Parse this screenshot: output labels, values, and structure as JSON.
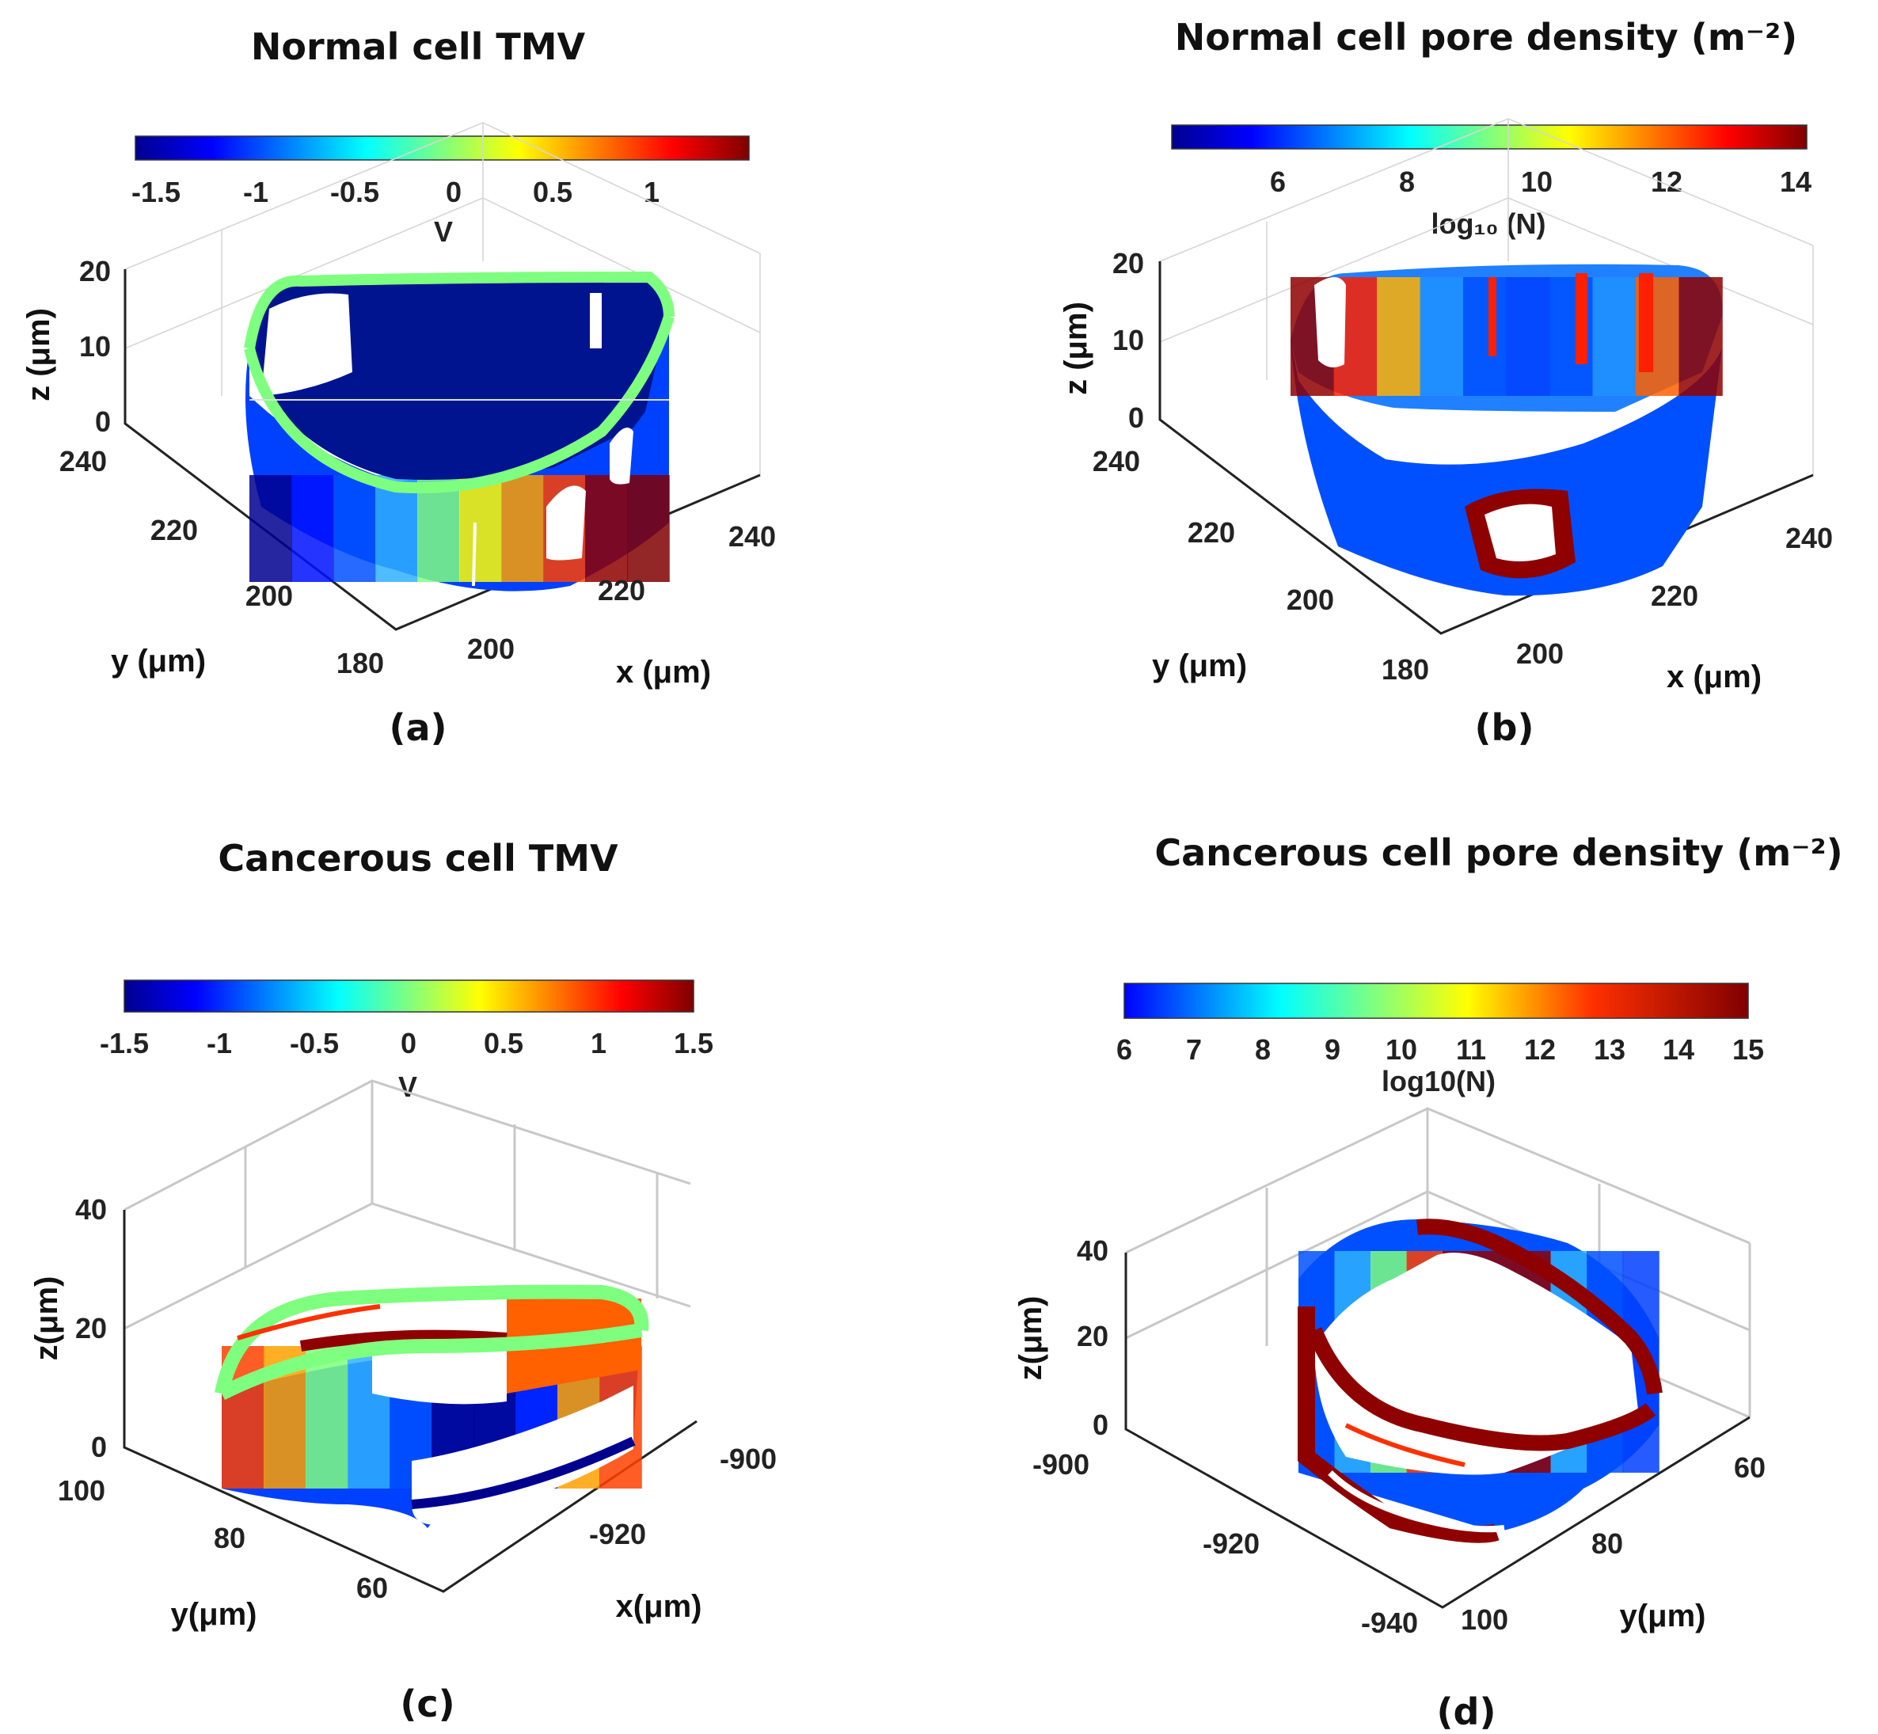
{
  "chart_data": [
    {
      "panel_label": "(a)",
      "type": "scatter3d",
      "title": "Normal cell TMV",
      "colorbar": {
        "colormap": "jet",
        "range": [
          -1.6,
          1.6
        ],
        "ticks": [
          "-1.5",
          "-1",
          "-0.5",
          "0",
          "0.5",
          "1"
        ],
        "label": "V"
      },
      "axes": {
        "z": {
          "label": "z (μm)",
          "ticks": [
            "20",
            "10",
            "0"
          ]
        },
        "y": {
          "label": "y (μm)",
          "ticks": [
            "240",
            "220",
            "200",
            "180"
          ]
        },
        "x": {
          "label": "x (μm)",
          "ticks": [
            "200",
            "220",
            "240"
          ]
        }
      },
      "band_colors": [
        "#00008f",
        "#0010ff",
        "#0050ff",
        "#2fb0ff",
        "#7fff7f",
        "#ffff00",
        "#ffa000",
        "#ff4000",
        "#8f0000",
        "#800000"
      ]
    },
    {
      "panel_label": "(b)",
      "type": "scatter3d",
      "title": "Normal cell pore density (m⁻²)",
      "colorbar": {
        "colormap": "jet",
        "range": [
          4.3,
          14.2
        ],
        "ticks": [
          "6",
          "8",
          "10",
          "12",
          "14"
        ],
        "label": "log₁₀ (N)"
      },
      "axes": {
        "z": {
          "label": "z (μm)",
          "ticks": [
            "20",
            "10",
            "0"
          ]
        },
        "y": {
          "label": "y (μm)",
          "ticks": [
            "240",
            "220",
            "200",
            "180"
          ]
        },
        "x": {
          "label": "x (μm)",
          "ticks": [
            "200",
            "220",
            "240"
          ]
        }
      },
      "band_colors": [
        "#8f0000",
        "#ff2000",
        "#ffb000",
        "#2090ff",
        "#0050ff",
        "#0040ff",
        "#0050ff",
        "#2090ff",
        "#ff6000",
        "#8f0000"
      ]
    },
    {
      "panel_label": "(c)",
      "type": "scatter3d",
      "title": "Cancerous cell TMV",
      "colorbar": {
        "colormap": "jet",
        "range": [
          -1.5,
          1.5
        ],
        "ticks": [
          "-1.5",
          "-1",
          "-0.5",
          "0",
          "0.5",
          "1",
          "1.5"
        ],
        "label": "V"
      },
      "axes": {
        "z": {
          "label": "z(μm)",
          "ticks": [
            "40",
            "20",
            "0"
          ]
        },
        "y": {
          "label": "y(μm)",
          "ticks": [
            "100",
            "80",
            "60"
          ]
        },
        "x": {
          "label": "x(μm)",
          "ticks": [
            "-900",
            "-920"
          ]
        }
      },
      "band_colors": [
        "#ff4000",
        "#ffa000",
        "#7fff7f",
        "#2fb0ff",
        "#0050ff",
        "#00008f",
        "#00008f",
        "#0020ff",
        "#ffa000",
        "#ff4000"
      ]
    },
    {
      "panel_label": "(d)",
      "type": "scatter3d",
      "title": "Cancerous cell pore density (m⁻²)",
      "colorbar": {
        "colormap": "jet",
        "range": [
          6,
          15
        ],
        "ticks": [
          "6",
          "7",
          "8",
          "9",
          "10",
          "11",
          "12",
          "13",
          "14",
          "15"
        ],
        "label": "log10(N)"
      },
      "axes": {
        "z": {
          "label": "z(μm)",
          "ticks": [
            "40",
            "20",
            "0"
          ]
        },
        "y": {
          "label": "y(μm)",
          "ticks": [
            "60",
            "80",
            "100"
          ]
        },
        "x": {
          "label": "",
          "ticks": [
            "-900",
            "-920",
            "-940"
          ]
        }
      },
      "band_colors": [
        "#0050ff",
        "#2fb0ff",
        "#7fff7f",
        "#ff4000",
        "#8f0000",
        "#8f0000",
        "#8f0000",
        "#2fb0ff",
        "#0050ff",
        "#0040ff"
      ]
    }
  ]
}
